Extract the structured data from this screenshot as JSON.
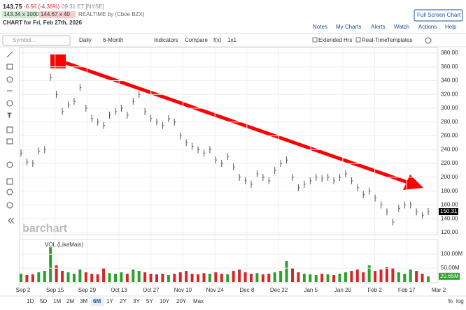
{
  "header": {
    "last": "143.75",
    "change": "-6.56 (-4.36%)",
    "time": "09:31 ET [NYSE]",
    "bid": "143.34 x 1000",
    "ask": "144.67 x 40",
    "source": "REALTIME by (Cboe BZX)",
    "chart_for": "CHART for Fri, Feb 27th, 2026"
  },
  "links": {
    "full_screen": "Full Screen Chart",
    "items": [
      "Notes",
      "My Charts",
      "Alerts",
      "Watch",
      "Actions",
      "Help"
    ]
  },
  "toolbar": {
    "symbol_placeholder": "Symbol...",
    "items": [
      "Daily",
      "6-Month",
      "Indicators",
      "Compare",
      "f(x)",
      "1x1"
    ],
    "options": [
      "Extended Hrs",
      "Real-Time"
    ],
    "templates": "Templates"
  },
  "price_chart": {
    "type": "ohlc",
    "color": "#555555",
    "date_labels": [
      "Sep 2",
      "Sep 15",
      "Sep 29",
      "Oct 13",
      "Oct 27",
      "Nov 10",
      "Nov 24",
      "Dec 8",
      "Dec 22",
      "Jan 5",
      "Jan 20",
      "Feb 2",
      "Feb 17",
      "Mar 2"
    ],
    "values": [
      235,
      222,
      220,
      238,
      240,
      345,
      320,
      295,
      305,
      310,
      330,
      300,
      285,
      280,
      275,
      290,
      295,
      300,
      290,
      310,
      320,
      295,
      285,
      280,
      275,
      285,
      280,
      260,
      250,
      245,
      240,
      235,
      240,
      225,
      220,
      230,
      215,
      200,
      195,
      190,
      205,
      200,
      195,
      210,
      220,
      225,
      200,
      185,
      190,
      195,
      200,
      198,
      200,
      195,
      200,
      205,
      195,
      185,
      175,
      180,
      170,
      160,
      150,
      135,
      155,
      160,
      160,
      150,
      145,
      150.31
    ],
    "ylim": [
      117,
      388
    ],
    "yticks": [
      {
        "value": 120,
        "label": "120.00"
      },
      {
        "value": 140,
        "label": "140.00"
      },
      {
        "value": 160,
        "label": "160.00"
      },
      {
        "value": 180,
        "label": "180.00"
      },
      {
        "value": 200,
        "label": "200.00"
      },
      {
        "value": 220,
        "label": "220.00"
      },
      {
        "value": 240,
        "label": "240.00"
      },
      {
        "value": 260,
        "label": "260.00"
      },
      {
        "value": 280,
        "label": "280.00"
      },
      {
        "value": 300,
        "label": "300.00"
      },
      {
        "value": 320,
        "label": "320.00"
      },
      {
        "value": 340,
        "label": "340.00"
      },
      {
        "value": 360,
        "label": "360.00"
      },
      {
        "value": 380,
        "label": "380.00"
      }
    ],
    "last_label": "150.31",
    "grid": true,
    "watermark": "barchart"
  },
  "volume_chart": {
    "type": "bar",
    "legend": "VOL (LikeMain)",
    "up_color": "#2ca02c",
    "down_color": "#d62728",
    "values": [
      30,
      25,
      28,
      35,
      40,
      125,
      60,
      40,
      35,
      30,
      45,
      35,
      30,
      28,
      50,
      32,
      30,
      35,
      30,
      45,
      40,
      35,
      30,
      28,
      30,
      25,
      30,
      35,
      40,
      30,
      28,
      32,
      30,
      35,
      30,
      28,
      40,
      45,
      35,
      30,
      32,
      28,
      30,
      35,
      40,
      75,
      50,
      35,
      30,
      28,
      25,
      30,
      28,
      25,
      30,
      35,
      40,
      45,
      35,
      60,
      40,
      45,
      55,
      50,
      35,
      30,
      45,
      40,
      30,
      20.65
    ],
    "ylim": [
      0,
      148
    ],
    "yticks": [
      {
        "value": 50,
        "label": "50.00M"
      },
      {
        "value": 100,
        "label": "100.00M"
      }
    ],
    "last_label": "20.65M"
  },
  "ranges": [
    "1D",
    "5D",
    "1M",
    "2M",
    "3M",
    "6M",
    "1Y",
    "2Y",
    "3Y",
    "5Y",
    "10Y",
    "20Y",
    "Max"
  ],
  "active_range": 5,
  "scale_options": [
    "%",
    "log"
  ]
}
